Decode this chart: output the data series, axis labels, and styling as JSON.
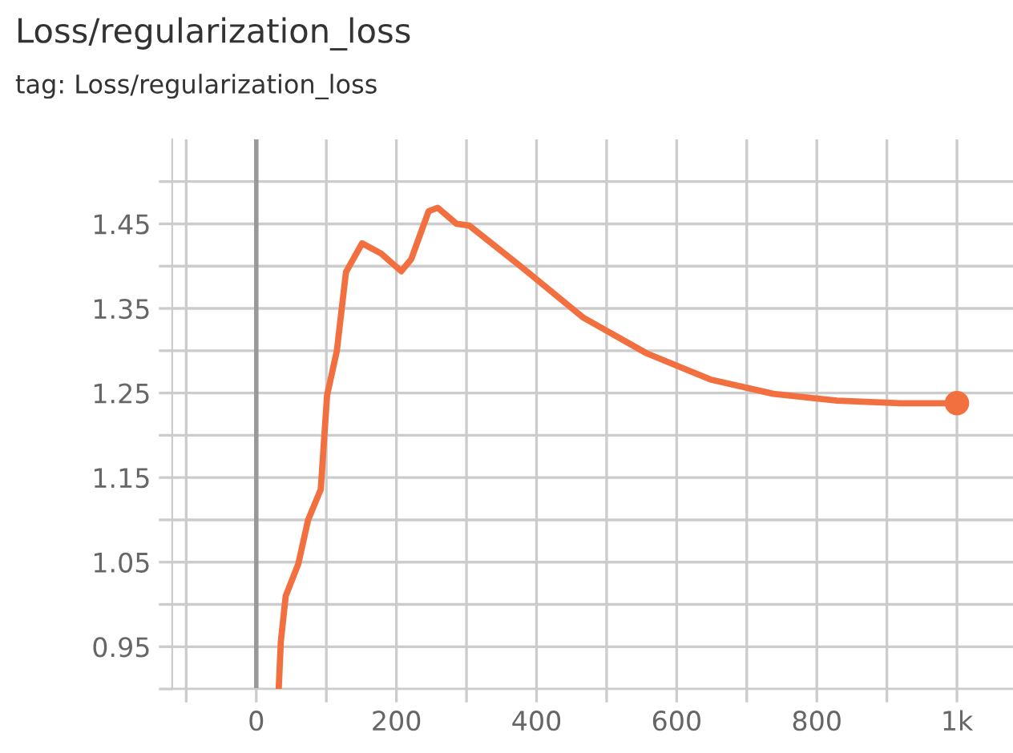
{
  "chart_data": {
    "type": "line",
    "title": "Loss/regularization_loss",
    "subtitle": "tag: Loss/regularization_loss",
    "x": [
      32,
      35,
      42,
      60,
      74,
      92,
      101,
      115,
      128,
      151,
      178,
      207,
      221,
      246,
      259,
      286,
      304,
      377,
      467,
      557,
      648,
      738,
      829,
      919,
      1000
    ],
    "series": [
      {
        "color": "#f2703f",
        "values": [
          0.9,
          0.956,
          1.01,
          1.048,
          1.1,
          1.136,
          1.247,
          1.3,
          1.393,
          1.427,
          1.415,
          1.394,
          1.408,
          1.465,
          1.469,
          1.45,
          1.448,
          1.4,
          1.339,
          1.297,
          1.266,
          1.249,
          1.241,
          1.238,
          1.238
        ]
      }
    ],
    "xlim": [
      -120,
      1080
    ],
    "ylim": [
      0.9,
      1.55
    ],
    "xticks": [
      {
        "value": -100,
        "label": null
      },
      0,
      {
        "value": 100,
        "label": null
      },
      200,
      {
        "value": 300,
        "label": null
      },
      400,
      {
        "value": 500,
        "label": null
      },
      600,
      {
        "value": 700,
        "label": null
      },
      800,
      {
        "value": 900,
        "label": null
      },
      {
        "value": 1000,
        "label": "1k"
      }
    ],
    "yticks": [
      {
        "value": 0.9,
        "label": null
      },
      0.95,
      {
        "value": 1.0,
        "label": null
      },
      1.05,
      {
        "value": 1.1,
        "label": null
      },
      1.15,
      {
        "value": 1.2,
        "label": null
      },
      1.25,
      {
        "value": 1.3,
        "label": null
      },
      1.35,
      {
        "value": 1.4,
        "label": null
      },
      1.45,
      {
        "value": 1.5,
        "label": null
      }
    ],
    "ref_lines": [
      {
        "axis": "x",
        "value": 0,
        "color": "#999999"
      }
    ],
    "grid": true,
    "marker": "none",
    "line_style": "solid",
    "legend": false
  }
}
